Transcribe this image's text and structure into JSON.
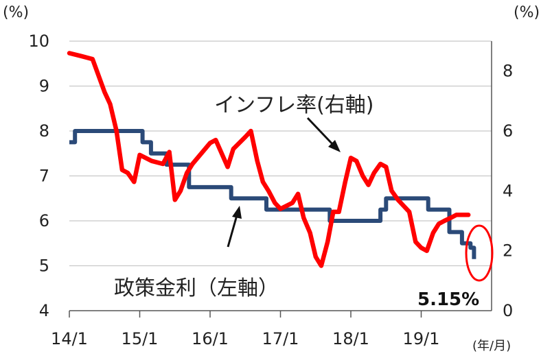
{
  "chart_data": {
    "type": "line",
    "left_axis": {
      "unit": "(%)",
      "ticks": [
        "10",
        "9",
        "8",
        "7",
        "6",
        "5",
        "4"
      ],
      "ylim": [
        4,
        10
      ]
    },
    "right_axis": {
      "unit": "(%)",
      "ticks": [
        "8",
        "6",
        "4",
        "2",
        "0"
      ],
      "ylim": [
        0,
        9
      ]
    },
    "x_axis": {
      "unit": "(年/月)",
      "ticks": [
        "14/1",
        "15/1",
        "16/1",
        "17/1",
        "18/1",
        "19/1"
      ]
    },
    "grid": true,
    "series": [
      {
        "name": "政策金利（左軸）",
        "axis": "left",
        "color": "#2B4A78",
        "step": true,
        "points": [
          [
            2014.0,
            7.75
          ],
          [
            2014.08,
            8.0
          ],
          [
            2015.04,
            7.75
          ],
          [
            2015.16,
            7.5
          ],
          [
            2015.38,
            7.25
          ],
          [
            2015.7,
            6.75
          ],
          [
            2016.3,
            6.5
          ],
          [
            2016.8,
            6.25
          ],
          [
            2017.7,
            6.0
          ],
          [
            2018.42,
            6.25
          ],
          [
            2018.5,
            6.5
          ],
          [
            2019.1,
            6.25
          ],
          [
            2019.4,
            5.75
          ],
          [
            2019.58,
            5.5
          ],
          [
            2019.7,
            5.4
          ],
          [
            2019.75,
            5.15
          ]
        ]
      },
      {
        "name": "インフレ率(右軸)",
        "axis": "right",
        "color": "#FF0000",
        "step": false,
        "points": [
          [
            2014.0,
            8.6
          ],
          [
            2014.17,
            8.5
          ],
          [
            2014.33,
            8.4
          ],
          [
            2014.5,
            7.3
          ],
          [
            2014.58,
            6.9
          ],
          [
            2014.67,
            6.0
          ],
          [
            2014.75,
            4.7
          ],
          [
            2014.83,
            4.6
          ],
          [
            2014.92,
            4.3
          ],
          [
            2015.0,
            5.2
          ],
          [
            2015.17,
            5.0
          ],
          [
            2015.33,
            4.9
          ],
          [
            2015.42,
            5.3
          ],
          [
            2015.5,
            3.7
          ],
          [
            2015.58,
            4.0
          ],
          [
            2015.67,
            4.6
          ],
          [
            2015.75,
            4.9
          ],
          [
            2016.0,
            5.6
          ],
          [
            2016.08,
            5.7
          ],
          [
            2016.25,
            4.8
          ],
          [
            2016.33,
            5.4
          ],
          [
            2016.5,
            5.8
          ],
          [
            2016.58,
            6.0
          ],
          [
            2016.67,
            5.0
          ],
          [
            2016.75,
            4.3
          ],
          [
            2016.83,
            4.0
          ],
          [
            2016.92,
            3.6
          ],
          [
            2017.0,
            3.4
          ],
          [
            2017.17,
            3.6
          ],
          [
            2017.25,
            3.9
          ],
          [
            2017.33,
            3.1
          ],
          [
            2017.42,
            2.6
          ],
          [
            2017.5,
            1.8
          ],
          [
            2017.58,
            1.5
          ],
          [
            2017.67,
            2.3
          ],
          [
            2017.75,
            3.3
          ],
          [
            2017.83,
            3.3
          ],
          [
            2017.92,
            4.3
          ],
          [
            2018.0,
            5.1
          ],
          [
            2018.08,
            5.0
          ],
          [
            2018.17,
            4.5
          ],
          [
            2018.25,
            4.2
          ],
          [
            2018.33,
            4.6
          ],
          [
            2018.42,
            4.9
          ],
          [
            2018.5,
            4.8
          ],
          [
            2018.58,
            4.0
          ],
          [
            2018.67,
            3.7
          ],
          [
            2018.75,
            3.5
          ],
          [
            2018.83,
            3.3
          ],
          [
            2018.92,
            2.3
          ],
          [
            2019.0,
            2.1
          ],
          [
            2019.08,
            2.0
          ],
          [
            2019.17,
            2.6
          ],
          [
            2019.25,
            2.9
          ],
          [
            2019.33,
            3.0
          ],
          [
            2019.42,
            3.1
          ],
          [
            2019.5,
            3.2
          ],
          [
            2019.58,
            3.2
          ],
          [
            2019.67,
            3.2
          ]
        ]
      }
    ],
    "annotations": [
      {
        "text": "インフレ率(右軸)"
      },
      {
        "text": "政策金利（左軸）"
      },
      {
        "text": "5.15%"
      }
    ]
  }
}
